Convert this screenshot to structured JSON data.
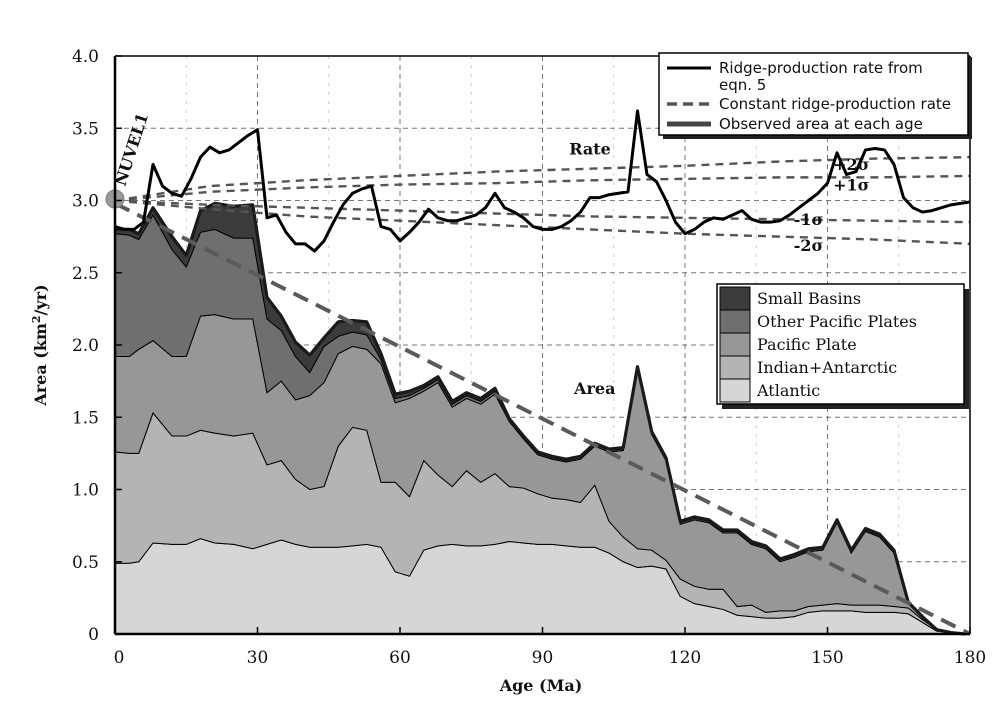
{
  "chart_data": {
    "type": "area",
    "xlabel": "Age (Ma)",
    "ylabel_main": "Area (km",
    "ylabel_sup": "2",
    "ylabel_end": "/yr)",
    "xlim": [
      0,
      180
    ],
    "ylim": [
      0,
      4.0
    ],
    "x_ticks": [
      0,
      30,
      60,
      90,
      120,
      150,
      180
    ],
    "y_ticks": [
      0,
      0.5,
      1.0,
      1.5,
      2.0,
      2.5,
      3.0,
      3.5,
      4.0
    ],
    "y_tick_labels": [
      "0",
      "0.5",
      "1.0",
      "1.5",
      "2.0",
      "2.5",
      "3.0",
      "3.5",
      "4.0"
    ],
    "grid": true,
    "stack_x": [
      0,
      3,
      5,
      8,
      12,
      15,
      18,
      21,
      25,
      29,
      32,
      35,
      38,
      41,
      44,
      47,
      50,
      53,
      56,
      59,
      62,
      65,
      68,
      71,
      74,
      77,
      80,
      83,
      86,
      89,
      92,
      95,
      98,
      101,
      104,
      107,
      110,
      113,
      116,
      119,
      122,
      125,
      128,
      131,
      134,
      137,
      140,
      143,
      146,
      149,
      152,
      155,
      158,
      161,
      164,
      167,
      170,
      173,
      176,
      179
    ],
    "stack_series": [
      {
        "name": "Atlantic",
        "color": "#d6d6d6",
        "values": [
          0.49,
          0.49,
          0.5,
          0.63,
          0.62,
          0.62,
          0.66,
          0.63,
          0.62,
          0.59,
          0.62,
          0.65,
          0.62,
          0.6,
          0.6,
          0.6,
          0.61,
          0.62,
          0.6,
          0.43,
          0.4,
          0.58,
          0.61,
          0.62,
          0.61,
          0.61,
          0.62,
          0.64,
          0.63,
          0.62,
          0.62,
          0.61,
          0.6,
          0.6,
          0.56,
          0.5,
          0.46,
          0.47,
          0.45,
          0.26,
          0.21,
          0.19,
          0.17,
          0.13,
          0.12,
          0.11,
          0.11,
          0.12,
          0.15,
          0.16,
          0.16,
          0.16,
          0.15,
          0.15,
          0.15,
          0.14,
          0.08,
          0.02,
          0.01,
          0.0
        ]
      },
      {
        "name": "Indian+Antarctic",
        "color": "#b4b4b4",
        "values": [
          0.77,
          0.76,
          0.75,
          0.9,
          0.75,
          0.75,
          0.75,
          0.76,
          0.75,
          0.8,
          0.55,
          0.55,
          0.45,
          0.4,
          0.42,
          0.7,
          0.82,
          0.79,
          0.45,
          0.62,
          0.55,
          0.62,
          0.49,
          0.4,
          0.52,
          0.44,
          0.49,
          0.38,
          0.38,
          0.35,
          0.32,
          0.32,
          0.31,
          0.43,
          0.22,
          0.17,
          0.13,
          0.11,
          0.06,
          0.12,
          0.12,
          0.12,
          0.14,
          0.06,
          0.08,
          0.04,
          0.05,
          0.04,
          0.04,
          0.04,
          0.05,
          0.04,
          0.05,
          0.05,
          0.04,
          0.04,
          0.02,
          0.01,
          0.0,
          0.0
        ]
      },
      {
        "name": "Pacific Plate",
        "color": "#979797",
        "values": [
          0.66,
          0.67,
          0.72,
          0.5,
          0.55,
          0.55,
          0.79,
          0.82,
          0.81,
          0.79,
          0.5,
          0.55,
          0.55,
          0.65,
          0.72,
          0.64,
          0.56,
          0.56,
          0.82,
          0.55,
          0.68,
          0.48,
          0.64,
          0.55,
          0.5,
          0.54,
          0.55,
          0.45,
          0.34,
          0.27,
          0.27,
          0.26,
          0.3,
          0.27,
          0.48,
          0.6,
          1.24,
          0.8,
          0.69,
          0.38,
          0.46,
          0.46,
          0.39,
          0.51,
          0.42,
          0.44,
          0.34,
          0.37,
          0.38,
          0.38,
          0.56,
          0.36,
          0.51,
          0.47,
          0.37,
          0.04,
          0.02,
          0.0,
          0.0,
          0.0
        ]
      },
      {
        "name": "Other Pacific Plates",
        "color": "#6f6f6f",
        "values": [
          0.85,
          0.84,
          0.76,
          0.87,
          0.74,
          0.62,
          0.58,
          0.59,
          0.56,
          0.56,
          0.51,
          0.35,
          0.3,
          0.16,
          0.25,
          0.12,
          0.1,
          0.1,
          0.03,
          0.03,
          0.02,
          0.02,
          0.02,
          0.02,
          0.02,
          0.02,
          0.02,
          0.01,
          0.01,
          0.01,
          0.01,
          0.01,
          0.01,
          0.01,
          0.01,
          0.01,
          0.01,
          0.01,
          0.01,
          0.01,
          0.01,
          0.01,
          0.01,
          0.01,
          0.01,
          0.01,
          0.01,
          0.01,
          0.01,
          0.01,
          0.01,
          0.01,
          0.01,
          0.01,
          0.01,
          0.0,
          0.0,
          0.0,
          0.0,
          0.0
        ]
      },
      {
        "name": "Small Basins",
        "color": "#3b3b3b",
        "values": [
          0.03,
          0.04,
          0.04,
          0.05,
          0.09,
          0.08,
          0.15,
          0.18,
          0.22,
          0.23,
          0.15,
          0.1,
          0.1,
          0.12,
          0.06,
          0.1,
          0.08,
          0.09,
          0.04,
          0.03,
          0.03,
          0.02,
          0.02,
          0.02,
          0.02,
          0.02,
          0.02,
          0.01,
          0.01,
          0.01,
          0.01,
          0.01,
          0.01,
          0.01,
          0.01,
          0.01,
          0.01,
          0.01,
          0.01,
          0.01,
          0.01,
          0.01,
          0.01,
          0.01,
          0.01,
          0.01,
          0.01,
          0.01,
          0.01,
          0.01,
          0.01,
          0.01,
          0.01,
          0.01,
          0.01,
          0.0,
          0.0,
          0.0,
          0.0,
          0.0
        ]
      }
    ],
    "rate_series": {
      "name": "Ridge-production rate from eqn. 5",
      "color": "#000000",
      "x": [
        0,
        2,
        4,
        6,
        8,
        10,
        12,
        14,
        16,
        18,
        20,
        22,
        24,
        26,
        28,
        30,
        32,
        34,
        36,
        38,
        40,
        42,
        44,
        46,
        48,
        50,
        52,
        54,
        56,
        58,
        60,
        62,
        64,
        66,
        68,
        70,
        72,
        74,
        76,
        78,
        80,
        82,
        84,
        86,
        88,
        90,
        92,
        94,
        96,
        98,
        100,
        102,
        104,
        106,
        108,
        110,
        112,
        114,
        116,
        118,
        120,
        122,
        124,
        126,
        128,
        130,
        132,
        134,
        136,
        138,
        140,
        142,
        144,
        146,
        148,
        150,
        152,
        154,
        156,
        158,
        160,
        162,
        164,
        166,
        168,
        170,
        172,
        174,
        176,
        178,
        180
      ],
      "y": [
        2.82,
        2.8,
        2.8,
        2.85,
        3.25,
        3.1,
        3.05,
        3.03,
        3.15,
        3.3,
        3.37,
        3.33,
        3.35,
        3.4,
        3.45,
        3.49,
        2.88,
        2.9,
        2.78,
        2.7,
        2.7,
        2.65,
        2.72,
        2.85,
        2.97,
        3.05,
        3.08,
        3.1,
        2.82,
        2.8,
        2.72,
        2.78,
        2.85,
        2.94,
        2.88,
        2.86,
        2.86,
        2.88,
        2.9,
        2.95,
        3.05,
        2.95,
        2.92,
        2.88,
        2.82,
        2.8,
        2.8,
        2.82,
        2.86,
        2.92,
        3.02,
        3.02,
        3.04,
        3.05,
        3.06,
        3.62,
        3.18,
        3.13,
        3.0,
        2.85,
        2.77,
        2.8,
        2.85,
        2.88,
        2.87,
        2.9,
        2.93,
        2.87,
        2.85,
        2.85,
        2.86,
        2.9,
        2.95,
        3.0,
        3.05,
        3.12,
        3.33,
        3.18,
        3.2,
        3.35,
        3.36,
        3.35,
        3.25,
        3.02,
        2.95,
        2.92,
        2.93,
        2.95,
        2.97,
        2.98,
        2.99
      ]
    },
    "constant_rate": {
      "name": "Constant ridge-production rate",
      "color": "#5a5a5a",
      "x": [
        0,
        180
      ],
      "y": [
        2.98,
        0.0
      ]
    },
    "observed_line": {
      "name": "Observed area at each age",
      "color": "#1a1a1a"
    },
    "sigma_curves": [
      {
        "label": "+2σ",
        "x": [
          0,
          20,
          40,
          60,
          80,
          100,
          120,
          140,
          160,
          180
        ],
        "y": [
          3.0,
          3.1,
          3.14,
          3.17,
          3.2,
          3.22,
          3.24,
          3.27,
          3.29,
          3.3
        ]
      },
      {
        "label": "+1σ",
        "x": [
          0,
          20,
          40,
          60,
          80,
          100,
          120,
          140,
          160,
          180
        ],
        "y": [
          3.0,
          3.06,
          3.09,
          3.11,
          3.12,
          3.14,
          3.15,
          3.16,
          3.16,
          3.17
        ]
      },
      {
        "label": "-1σ",
        "x": [
          0,
          20,
          40,
          60,
          80,
          100,
          120,
          140,
          160,
          180
        ],
        "y": [
          3.0,
          2.97,
          2.95,
          2.93,
          2.91,
          2.89,
          2.88,
          2.87,
          2.86,
          2.85
        ]
      },
      {
        "label": "-2σ",
        "x": [
          0,
          20,
          40,
          60,
          80,
          100,
          120,
          140,
          160,
          180
        ],
        "y": [
          3.0,
          2.94,
          2.89,
          2.86,
          2.83,
          2.8,
          2.77,
          2.75,
          2.73,
          2.7
        ]
      }
    ],
    "sigma_label_positions": [
      {
        "label": "+2σ",
        "x": 155,
        "y": 3.21
      },
      {
        "label": "+1σ",
        "x": 155,
        "y": 3.07
      },
      {
        "label": "-1σ",
        "x": 146,
        "y": 2.83
      },
      {
        "label": "-2σ",
        "x": 146,
        "y": 2.65
      }
    ],
    "nuvel_point": {
      "label": "NUVEL1",
      "x": 0,
      "y": 3.01
    },
    "annotations": [
      {
        "text": "Rate",
        "x": 100,
        "y": 3.32
      },
      {
        "text": "Area",
        "x": 101,
        "y": 1.66
      }
    ],
    "legend_lines": [
      {
        "label": "Ridge-production rate from",
        "label2": "eqn. 5",
        "style": "solid"
      },
      {
        "label": "Constant ridge-production rate",
        "style": "dashed"
      },
      {
        "label": "Observed area at each age",
        "style": "thick"
      }
    ],
    "legend_lines_position": "top-right",
    "legend_areas": [
      {
        "label": "Small Basins",
        "color": "#3b3b3b"
      },
      {
        "label": "Other Pacific Plates",
        "color": "#6f6f6f"
      },
      {
        "label": "Pacific Plate",
        "color": "#979797"
      },
      {
        "label": "Indian+Antarctic",
        "color": "#b4b4b4"
      },
      {
        "label": "Atlantic",
        "color": "#d6d6d6"
      }
    ],
    "legend_areas_position": "right"
  }
}
